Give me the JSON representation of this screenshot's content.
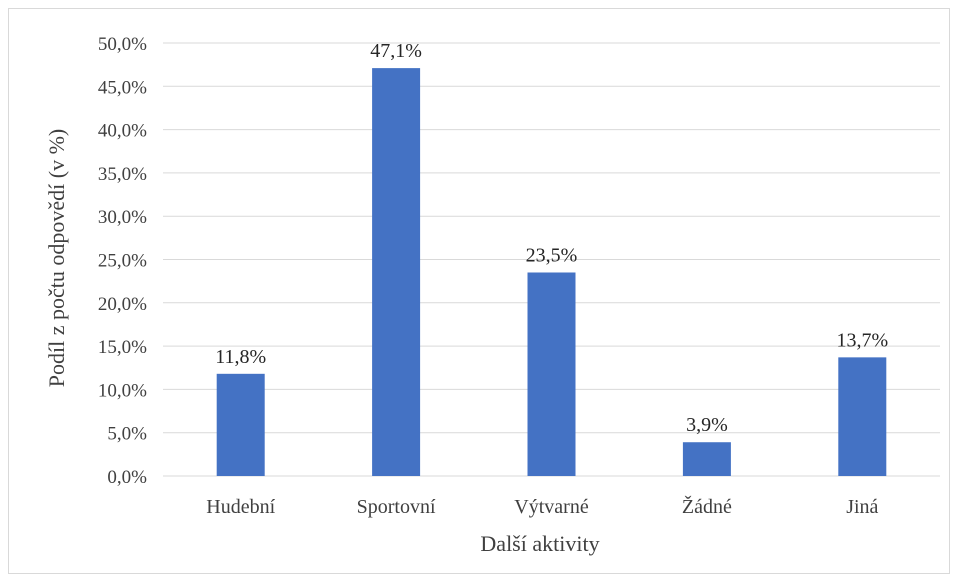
{
  "chart_data": {
    "type": "bar",
    "categories": [
      "Hudební",
      "Sportovní",
      "Výtvarné",
      "Žádné",
      "Jiná"
    ],
    "values": [
      11.8,
      47.1,
      23.5,
      3.9,
      13.7
    ],
    "data_labels": [
      "11,8%",
      "47,1%",
      "23,5%",
      "3,9%",
      "13,7%"
    ],
    "title": "",
    "xlabel": "Další aktivity",
    "ylabel": "Podíl z počtu odpovědí (v %)",
    "ylim": [
      0,
      50
    ],
    "yticks": [
      0,
      5,
      10,
      15,
      20,
      25,
      30,
      35,
      40,
      45,
      50
    ],
    "ytick_labels": [
      "0,0%",
      "5,0%",
      "10,0%",
      "15,0%",
      "20,0%",
      "25,0%",
      "30,0%",
      "35,0%",
      "40,0%",
      "45,0%",
      "50,0%"
    ],
    "grid": true,
    "legend": "none",
    "bar_color": "#4472c4",
    "grid_color": "#d9d9d9"
  }
}
